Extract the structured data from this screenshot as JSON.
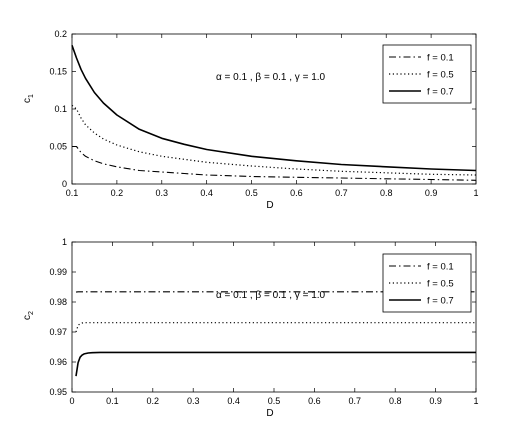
{
  "chart_data": [
    {
      "type": "line",
      "title": "",
      "xlabel": "D",
      "ylabel": "c",
      "ylabel_sub": "1",
      "xlim": [
        0.1,
        1
      ],
      "ylim": [
        0,
        0.2
      ],
      "x_ticks": [
        "0.1",
        "0.2",
        "0.3",
        "0.4",
        "0.5",
        "0.6",
        "0.7",
        "0.8",
        "0.9",
        "1"
      ],
      "y_ticks": [
        "0",
        "0.05",
        "0.1",
        "0.15",
        "0.2"
      ],
      "annotation": "α = 0.1 , β = 0.1 , γ = 1.0",
      "legend_position": "top-right",
      "grid": false,
      "x": [
        0.1,
        0.11,
        0.12,
        0.13,
        0.15,
        0.17,
        0.2,
        0.25,
        0.3,
        0.35,
        0.4,
        0.5,
        0.6,
        0.7,
        0.8,
        0.9,
        1.0
      ],
      "series": [
        {
          "name": "f = 0.1",
          "style": "dashdot",
          "values": [
            0.05,
            0.05,
            0.042,
            0.037,
            0.031,
            0.027,
            0.023,
            0.018,
            0.016,
            0.014,
            0.012,
            0.01,
            0.009,
            0.008,
            0.007,
            0.006,
            0.005
          ]
        },
        {
          "name": "f = 0.5",
          "style": "dotted",
          "values": [
            0.105,
            0.1,
            0.088,
            0.079,
            0.068,
            0.06,
            0.052,
            0.043,
            0.037,
            0.033,
            0.029,
            0.024,
            0.02,
            0.017,
            0.015,
            0.013,
            0.012
          ]
        },
        {
          "name": "f = 0.7",
          "style": "solid",
          "values": [
            0.185,
            0.168,
            0.153,
            0.141,
            0.122,
            0.108,
            0.092,
            0.073,
            0.061,
            0.053,
            0.046,
            0.037,
            0.031,
            0.026,
            0.023,
            0.02,
            0.018
          ]
        }
      ]
    },
    {
      "type": "line",
      "title": "",
      "xlabel": "D",
      "ylabel": "c",
      "ylabel_sub": "2",
      "xlim": [
        0,
        1
      ],
      "ylim": [
        0.95,
        1
      ],
      "x_ticks": [
        "0",
        "0.1",
        "0.2",
        "0.3",
        "0.4",
        "0.5",
        "0.6",
        "0.7",
        "0.8",
        "0.9",
        "1"
      ],
      "y_ticks": [
        "0.95",
        "0.96",
        "0.97",
        "0.98",
        "0.99",
        "1"
      ],
      "annotation": "α = 0.1 , β = 0.1 , γ = 1.0",
      "legend_position": "top-right",
      "grid": false,
      "x": [
        0.01,
        0.015,
        0.02,
        0.025,
        0.03,
        0.04,
        0.05,
        0.07,
        0.1,
        0.2,
        0.3,
        0.4,
        0.5,
        0.6,
        0.7,
        0.8,
        0.9,
        1.0
      ],
      "series": [
        {
          "name": "f = 0.1",
          "style": "dashdot",
          "values": [
            0.9833,
            0.9834,
            0.9834,
            0.9834,
            0.9834,
            0.9834,
            0.9834,
            0.9834,
            0.9834,
            0.9834,
            0.9834,
            0.9834,
            0.9834,
            0.9834,
            0.9834,
            0.9834,
            0.9834,
            0.9834
          ]
        },
        {
          "name": "f = 0.5",
          "style": "dotted",
          "values": [
            0.97,
            0.9722,
            0.9728,
            0.973,
            0.9731,
            0.9731,
            0.9731,
            0.9731,
            0.9731,
            0.9731,
            0.9731,
            0.9731,
            0.9731,
            0.9731,
            0.9731,
            0.9731,
            0.9731,
            0.9731
          ]
        },
        {
          "name": "f = 0.7",
          "style": "solid",
          "values": [
            0.9553,
            0.9598,
            0.9616,
            0.9623,
            0.9627,
            0.963,
            0.9631,
            0.9632,
            0.9632,
            0.9632,
            0.9632,
            0.9632,
            0.9632,
            0.9632,
            0.9632,
            0.9632,
            0.9632,
            0.9632
          ]
        }
      ]
    }
  ]
}
